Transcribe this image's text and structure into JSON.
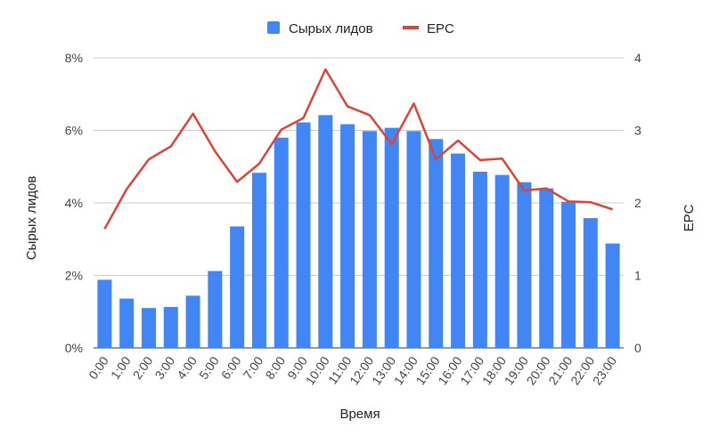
{
  "chart_data": {
    "type": "bar",
    "categories": [
      "0:00",
      "1:00",
      "2:00",
      "3:00",
      "4:00",
      "5:00",
      "6:00",
      "7:00",
      "8:00",
      "9:00",
      "10:00",
      "11:00",
      "12:00",
      "13:00",
      "14:00",
      "15:00",
      "16:00",
      "17:00",
      "18:00",
      "19:00",
      "20:00",
      "21:00",
      "22:00",
      "23:00"
    ],
    "series": [
      {
        "name": "Сырых лидов",
        "type": "bar",
        "axis": "left",
        "color": "#4285f4",
        "values": [
          1.88,
          1.36,
          1.1,
          1.13,
          1.44,
          2.12,
          3.35,
          4.83,
          5.8,
          6.22,
          6.42,
          6.17,
          5.98,
          6.07,
          5.98,
          5.76,
          5.36,
          4.86,
          4.77,
          4.57,
          4.4,
          4.03,
          3.58,
          2.88
        ]
      },
      {
        "name": "EPC",
        "type": "line",
        "axis": "right",
        "color": "#db4437",
        "values": [
          1.64,
          2.19,
          2.6,
          2.78,
          3.23,
          2.71,
          2.29,
          2.54,
          3.01,
          3.17,
          3.84,
          3.33,
          3.21,
          2.81,
          3.37,
          2.6,
          2.86,
          2.59,
          2.61,
          2.17,
          2.2,
          2.02,
          2.01,
          1.91
        ]
      }
    ],
    "xlabel": "Время",
    "ylabel": "Сырых лидов",
    "y2label": "EPC",
    "ylim": [
      0,
      8
    ],
    "y2lim": [
      0,
      4
    ],
    "yticks": [
      "0%",
      "2%",
      "4%",
      "6%",
      "8%"
    ],
    "y2ticks": [
      "0",
      "1",
      "2",
      "3",
      "4"
    ],
    "legend_position": "top-center",
    "grid": true
  }
}
